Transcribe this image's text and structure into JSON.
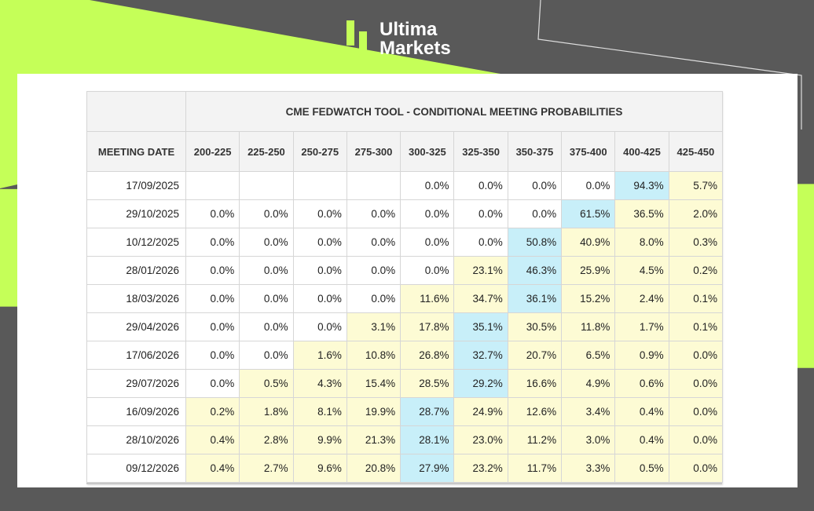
{
  "brand": {
    "line1": "Ultima",
    "line2": "Markets"
  },
  "colors": {
    "lime": "#c5ff58",
    "dark": "#595959",
    "highlight": "#c8eff9",
    "light": "#fdfbd4"
  },
  "table": {
    "title": "CME FEDWATCH TOOL - CONDITIONAL MEETING PROBABILITIES",
    "date_header": "MEETING DATE",
    "columns": [
      "200-225",
      "225-250",
      "250-275",
      "275-300",
      "300-325",
      "325-350",
      "350-375",
      "375-400",
      "400-425",
      "425-450"
    ],
    "rows": [
      {
        "date": "17/09/2025",
        "values": [
          "",
          "",
          "",
          "",
          "0.0%",
          "0.0%",
          "0.0%",
          "0.0%",
          "94.3%",
          "5.7%"
        ],
        "styles": [
          "b",
          "b",
          "b",
          "b",
          "w",
          "w",
          "w",
          "w",
          "B",
          "y"
        ]
      },
      {
        "date": "29/10/2025",
        "values": [
          "0.0%",
          "0.0%",
          "0.0%",
          "0.0%",
          "0.0%",
          "0.0%",
          "0.0%",
          "61.5%",
          "36.5%",
          "2.0%"
        ],
        "styles": [
          "w",
          "w",
          "w",
          "w",
          "w",
          "w",
          "w",
          "B",
          "y",
          "y"
        ]
      },
      {
        "date": "10/12/2025",
        "values": [
          "0.0%",
          "0.0%",
          "0.0%",
          "0.0%",
          "0.0%",
          "0.0%",
          "50.8%",
          "40.9%",
          "8.0%",
          "0.3%"
        ],
        "styles": [
          "w",
          "w",
          "w",
          "w",
          "w",
          "w",
          "B",
          "y",
          "y",
          "y"
        ]
      },
      {
        "date": "28/01/2026",
        "values": [
          "0.0%",
          "0.0%",
          "0.0%",
          "0.0%",
          "0.0%",
          "23.1%",
          "46.3%",
          "25.9%",
          "4.5%",
          "0.2%"
        ],
        "styles": [
          "w",
          "w",
          "w",
          "w",
          "w",
          "y",
          "B",
          "y",
          "y",
          "y"
        ]
      },
      {
        "date": "18/03/2026",
        "values": [
          "0.0%",
          "0.0%",
          "0.0%",
          "0.0%",
          "11.6%",
          "34.7%",
          "36.1%",
          "15.2%",
          "2.4%",
          "0.1%"
        ],
        "styles": [
          "w",
          "w",
          "w",
          "w",
          "y",
          "y",
          "B",
          "y",
          "y",
          "y"
        ]
      },
      {
        "date": "29/04/2026",
        "values": [
          "0.0%",
          "0.0%",
          "0.0%",
          "3.1%",
          "17.8%",
          "35.1%",
          "30.5%",
          "11.8%",
          "1.7%",
          "0.1%"
        ],
        "styles": [
          "w",
          "w",
          "w",
          "y",
          "y",
          "B",
          "y",
          "y",
          "y",
          "y"
        ]
      },
      {
        "date": "17/06/2026",
        "values": [
          "0.0%",
          "0.0%",
          "1.6%",
          "10.8%",
          "26.8%",
          "32.7%",
          "20.7%",
          "6.5%",
          "0.9%",
          "0.0%"
        ],
        "styles": [
          "w",
          "w",
          "y",
          "y",
          "y",
          "B",
          "y",
          "y",
          "y",
          "y"
        ]
      },
      {
        "date": "29/07/2026",
        "values": [
          "0.0%",
          "0.5%",
          "4.3%",
          "15.4%",
          "28.5%",
          "29.2%",
          "16.6%",
          "4.9%",
          "0.6%",
          "0.0%"
        ],
        "styles": [
          "w",
          "y",
          "y",
          "y",
          "y",
          "B",
          "y",
          "y",
          "y",
          "y"
        ]
      },
      {
        "date": "16/09/2026",
        "values": [
          "0.2%",
          "1.8%",
          "8.1%",
          "19.9%",
          "28.7%",
          "24.9%",
          "12.6%",
          "3.4%",
          "0.4%",
          "0.0%"
        ],
        "styles": [
          "y",
          "y",
          "y",
          "y",
          "B",
          "y",
          "y",
          "y",
          "y",
          "y"
        ]
      },
      {
        "date": "28/10/2026",
        "values": [
          "0.4%",
          "2.8%",
          "9.9%",
          "21.3%",
          "28.1%",
          "23.0%",
          "11.2%",
          "3.0%",
          "0.4%",
          "0.0%"
        ],
        "styles": [
          "y",
          "y",
          "y",
          "y",
          "B",
          "y",
          "y",
          "y",
          "y",
          "y"
        ]
      },
      {
        "date": "09/12/2026",
        "values": [
          "0.4%",
          "2.7%",
          "9.6%",
          "20.8%",
          "27.9%",
          "23.2%",
          "11.7%",
          "3.3%",
          "0.5%",
          "0.0%"
        ],
        "styles": [
          "y",
          "y",
          "y",
          "y",
          "B",
          "y",
          "y",
          "y",
          "y",
          "y"
        ]
      }
    ]
  }
}
